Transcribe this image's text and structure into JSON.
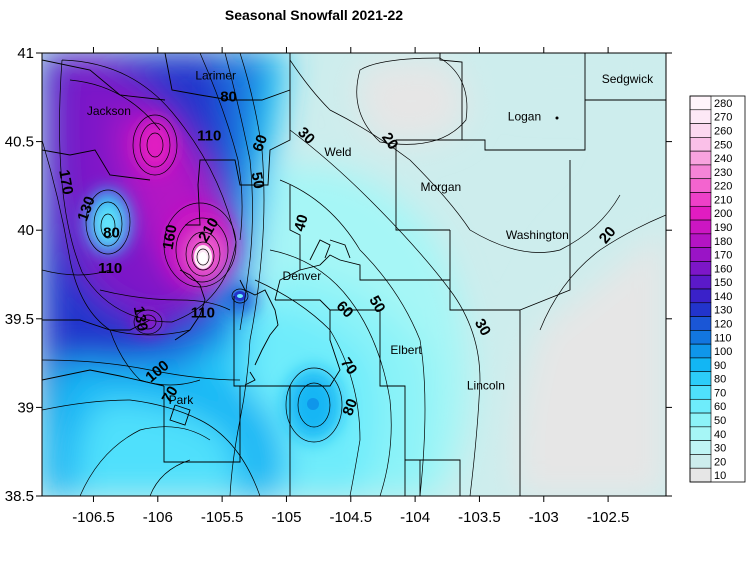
{
  "title": "Seasonal Snowfall 2021-22",
  "chart_data": {
    "type": "heatmap",
    "title": "Seasonal Snowfall 2021-22",
    "xlim": [
      -106.9,
      -102.05
    ],
    "ylim": [
      38.5,
      41
    ],
    "x_ticks": [
      -106.5,
      -106,
      -105.5,
      -105,
      -104.5,
      -104,
      -103.5,
      -103,
      -102.5
    ],
    "x_tick_labels": [
      "-106.5",
      "-106",
      "-105.5",
      "-105",
      "-104.5",
      "-104",
      "-103.5",
      "-103",
      "-102.5"
    ],
    "y_ticks": [
      38.5,
      39,
      39.5,
      40,
      40.5,
      41
    ],
    "y_tick_labels": [
      "38.5",
      "39",
      "39.5",
      "40",
      "40.5",
      "41"
    ],
    "legend": {
      "placement": "right",
      "levels": [
        10,
        20,
        30,
        40,
        50,
        60,
        70,
        80,
        90,
        100,
        110,
        120,
        130,
        140,
        150,
        160,
        170,
        180,
        190,
        200,
        210,
        220,
        230,
        240,
        250,
        260,
        270,
        280
      ],
      "labels": [
        "10",
        "20",
        "30",
        "40",
        "50",
        "60",
        "70",
        "80",
        "90",
        "100",
        "110",
        "120",
        "130",
        "140",
        "150",
        "160",
        "170",
        "180",
        "190",
        "200",
        "210",
        "220",
        "230",
        "240",
        "250",
        "260",
        "270",
        "280"
      ],
      "colors": [
        "#e6e6e6",
        "#cdeded",
        "#bff5f5",
        "#a6f6f6",
        "#8cf3f8",
        "#6eecfb",
        "#4fe0fc",
        "#2ccdf9",
        "#12b6f4",
        "#0f96ea",
        "#1276e0",
        "#1a56d6",
        "#2234cc",
        "#3a21c9",
        "#5b19c9",
        "#7d16c8",
        "#9a14c6",
        "#b414c4",
        "#cc16c2",
        "#e11cc1",
        "#ee40c8",
        "#f364cf",
        "#f584d7",
        "#f8a3df",
        "#fac0e8",
        "#fcd8f0",
        "#fde8f6",
        "#fff5fb"
      ]
    },
    "counties": [
      {
        "name": "Larimer",
        "lon": -105.55,
        "lat": 40.85
      },
      {
        "name": "Jackson",
        "lon": -106.38,
        "lat": 40.65
      },
      {
        "name": "Weld",
        "lon": -104.6,
        "lat": 40.42
      },
      {
        "name": "Logan",
        "lon": -103.15,
        "lat": 40.62
      },
      {
        "name": "Sedgwick",
        "lon": -102.35,
        "lat": 40.83
      },
      {
        "name": "Morgan",
        "lon": -103.8,
        "lat": 40.22
      },
      {
        "name": "Washington",
        "lon": -103.05,
        "lat": 39.95
      },
      {
        "name": "Denver",
        "lon": -104.88,
        "lat": 39.72
      },
      {
        "name": "Elbert",
        "lon": -104.07,
        "lat": 39.3
      },
      {
        "name": "Lincoln",
        "lon": -103.45,
        "lat": 39.1
      },
      {
        "name": "Park",
        "lon": -105.82,
        "lat": 39.02
      }
    ],
    "contour_labels": [
      {
        "value": "170",
        "lon": -106.72,
        "lat": 40.27,
        "angle": 80
      },
      {
        "value": "130",
        "lon": -106.55,
        "lat": 40.12,
        "angle": -70
      },
      {
        "value": "80",
        "lon": -106.36,
        "lat": 39.98,
        "angle": 0
      },
      {
        "value": "160",
        "lon": -105.9,
        "lat": 39.96,
        "angle": -80
      },
      {
        "value": "210",
        "lon": -105.6,
        "lat": 40.0,
        "angle": -60
      },
      {
        "value": "110",
        "lon": -106.37,
        "lat": 39.78,
        "angle": 0
      },
      {
        "value": "130",
        "lon": -106.14,
        "lat": 39.5,
        "angle": 80
      },
      {
        "value": "110",
        "lon": -105.65,
        "lat": 39.53,
        "angle": 0
      },
      {
        "value": "100",
        "lon": -106.0,
        "lat": 39.2,
        "angle": -40
      },
      {
        "value": "70",
        "lon": -105.9,
        "lat": 39.07,
        "angle": -60
      },
      {
        "value": "80",
        "lon": -105.45,
        "lat": 40.75,
        "angle": 0
      },
      {
        "value": "110",
        "lon": -105.6,
        "lat": 40.53,
        "angle": 0
      },
      {
        "value": "60",
        "lon": -105.2,
        "lat": 40.49,
        "angle": -70
      },
      {
        "value": "50",
        "lon": -105.23,
        "lat": 40.28,
        "angle": 80
      },
      {
        "value": "30",
        "lon": -104.85,
        "lat": 40.53,
        "angle": 45
      },
      {
        "value": "20",
        "lon": -104.2,
        "lat": 40.5,
        "angle": 55
      },
      {
        "value": "40",
        "lon": -104.88,
        "lat": 40.04,
        "angle": -75
      },
      {
        "value": "60",
        "lon": -104.55,
        "lat": 39.55,
        "angle": 45
      },
      {
        "value": "50",
        "lon": -104.3,
        "lat": 39.58,
        "angle": 60
      },
      {
        "value": "70",
        "lon": -104.52,
        "lat": 39.23,
        "angle": 55
      },
      {
        "value": "80",
        "lon": -104.5,
        "lat": 39.0,
        "angle": -70
      },
      {
        "value": "30",
        "lon": -103.48,
        "lat": 39.45,
        "angle": 60
      },
      {
        "value": "20",
        "lon": -102.5,
        "lat": 39.97,
        "angle": -50
      }
    ]
  }
}
